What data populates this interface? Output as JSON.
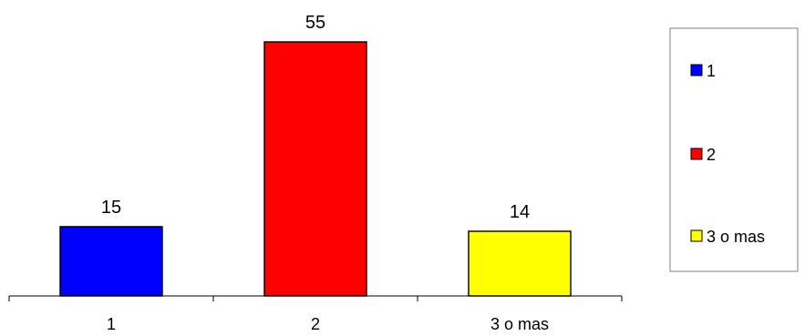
{
  "chart_data": {
    "type": "bar",
    "categories": [
      "1",
      "2",
      "3 o mas"
    ],
    "values": [
      15,
      55,
      14
    ],
    "colors": [
      "#0000ff",
      "#ff0000",
      "#ffff00"
    ],
    "data_labels": [
      "15",
      "55",
      "14"
    ],
    "ylim": [
      0,
      58
    ],
    "y_axis_visible": false,
    "grid": false,
    "legend": {
      "placement": "right",
      "entries": [
        "1",
        "2",
        "3 o mas"
      ]
    }
  }
}
